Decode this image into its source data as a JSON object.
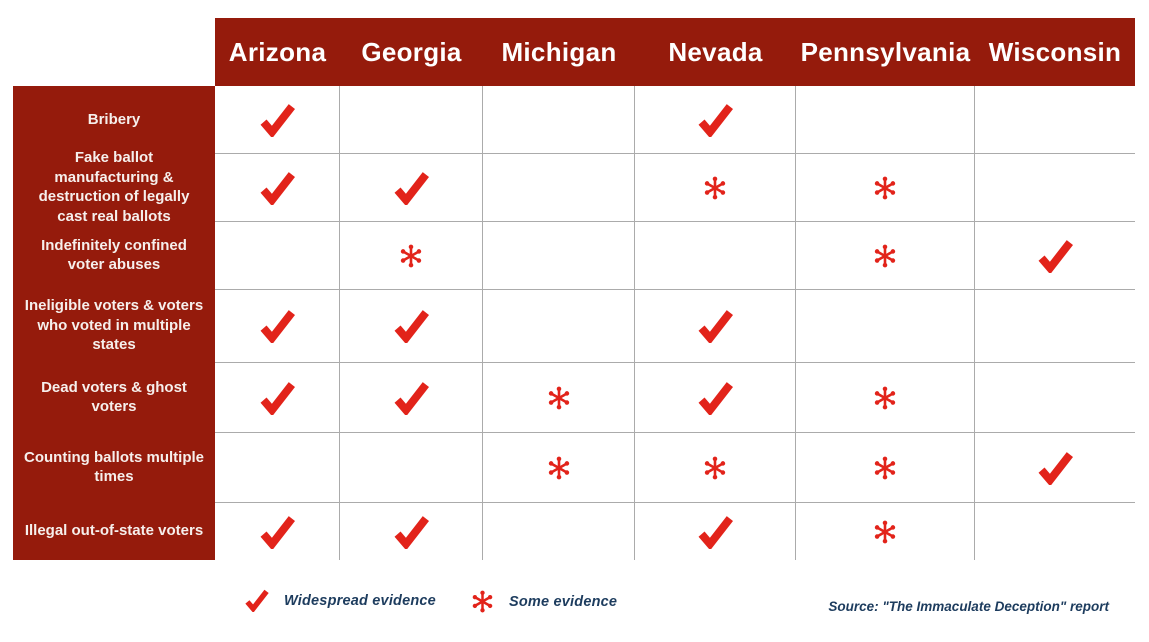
{
  "colors": {
    "dark_red": "#951B0C",
    "bright_red": "#E2231A",
    "navy": "#1D3C5E",
    "grid_line": "#ABABAB"
  },
  "columns": [
    "Arizona",
    "Georgia",
    "Michigan",
    "Nevada",
    "Pennsylvania",
    "Wisconsin"
  ],
  "rows": [
    {
      "label": "Bribery",
      "marks": [
        "check",
        "",
        "",
        "check",
        "",
        ""
      ]
    },
    {
      "label": "Fake ballot manufacturing & destruction of legally cast real ballots",
      "marks": [
        "check",
        "check",
        "",
        "asterisk",
        "asterisk",
        ""
      ]
    },
    {
      "label": "Indefinitely confined voter abuses",
      "marks": [
        "",
        "asterisk",
        "",
        "",
        "asterisk",
        "check"
      ]
    },
    {
      "label": "Ineligible voters & voters who voted in multiple states",
      "marks": [
        "check",
        "check",
        "",
        "check",
        "",
        ""
      ]
    },
    {
      "label": "Dead voters & ghost voters",
      "marks": [
        "check",
        "check",
        "asterisk",
        "check",
        "asterisk",
        ""
      ]
    },
    {
      "label": "Counting ballots multiple times",
      "marks": [
        "",
        "",
        "asterisk",
        "asterisk",
        "asterisk",
        "check"
      ]
    },
    {
      "label": "Illegal out-of-state voters",
      "marks": [
        "check",
        "check",
        "",
        "check",
        "asterisk",
        ""
      ]
    }
  ],
  "legend": {
    "check_label": "Widespread evidence",
    "asterisk_label": "Some evidence"
  },
  "source": "Source: \"The Immaculate Deception\" report",
  "chart_data": {
    "type": "table",
    "title": "",
    "columns": [
      "Arizona",
      "Georgia",
      "Michigan",
      "Nevada",
      "Pennsylvania",
      "Wisconsin"
    ],
    "row_labels": [
      "Bribery",
      "Fake ballot manufacturing & destruction of legally cast real ballots",
      "Indefinitely confined voter abuses",
      "Ineligible voters & voters who voted in multiple states",
      "Dead voters & ghost voters",
      "Counting ballots multiple times",
      "Illegal out-of-state voters"
    ],
    "cell_values": [
      [
        "check",
        "",
        "",
        "check",
        "",
        ""
      ],
      [
        "check",
        "check",
        "",
        "asterisk",
        "asterisk",
        ""
      ],
      [
        "",
        "asterisk",
        "",
        "",
        "asterisk",
        "check"
      ],
      [
        "check",
        "check",
        "",
        "check",
        "",
        ""
      ],
      [
        "check",
        "check",
        "asterisk",
        "check",
        "asterisk",
        ""
      ],
      [
        "",
        "",
        "asterisk",
        "asterisk",
        "asterisk",
        "check"
      ],
      [
        "check",
        "check",
        "",
        "check",
        "asterisk",
        ""
      ]
    ],
    "value_legend": {
      "check": "Widespread evidence",
      "asterisk": "Some evidence"
    },
    "legend_position": "bottom",
    "grid": true
  }
}
